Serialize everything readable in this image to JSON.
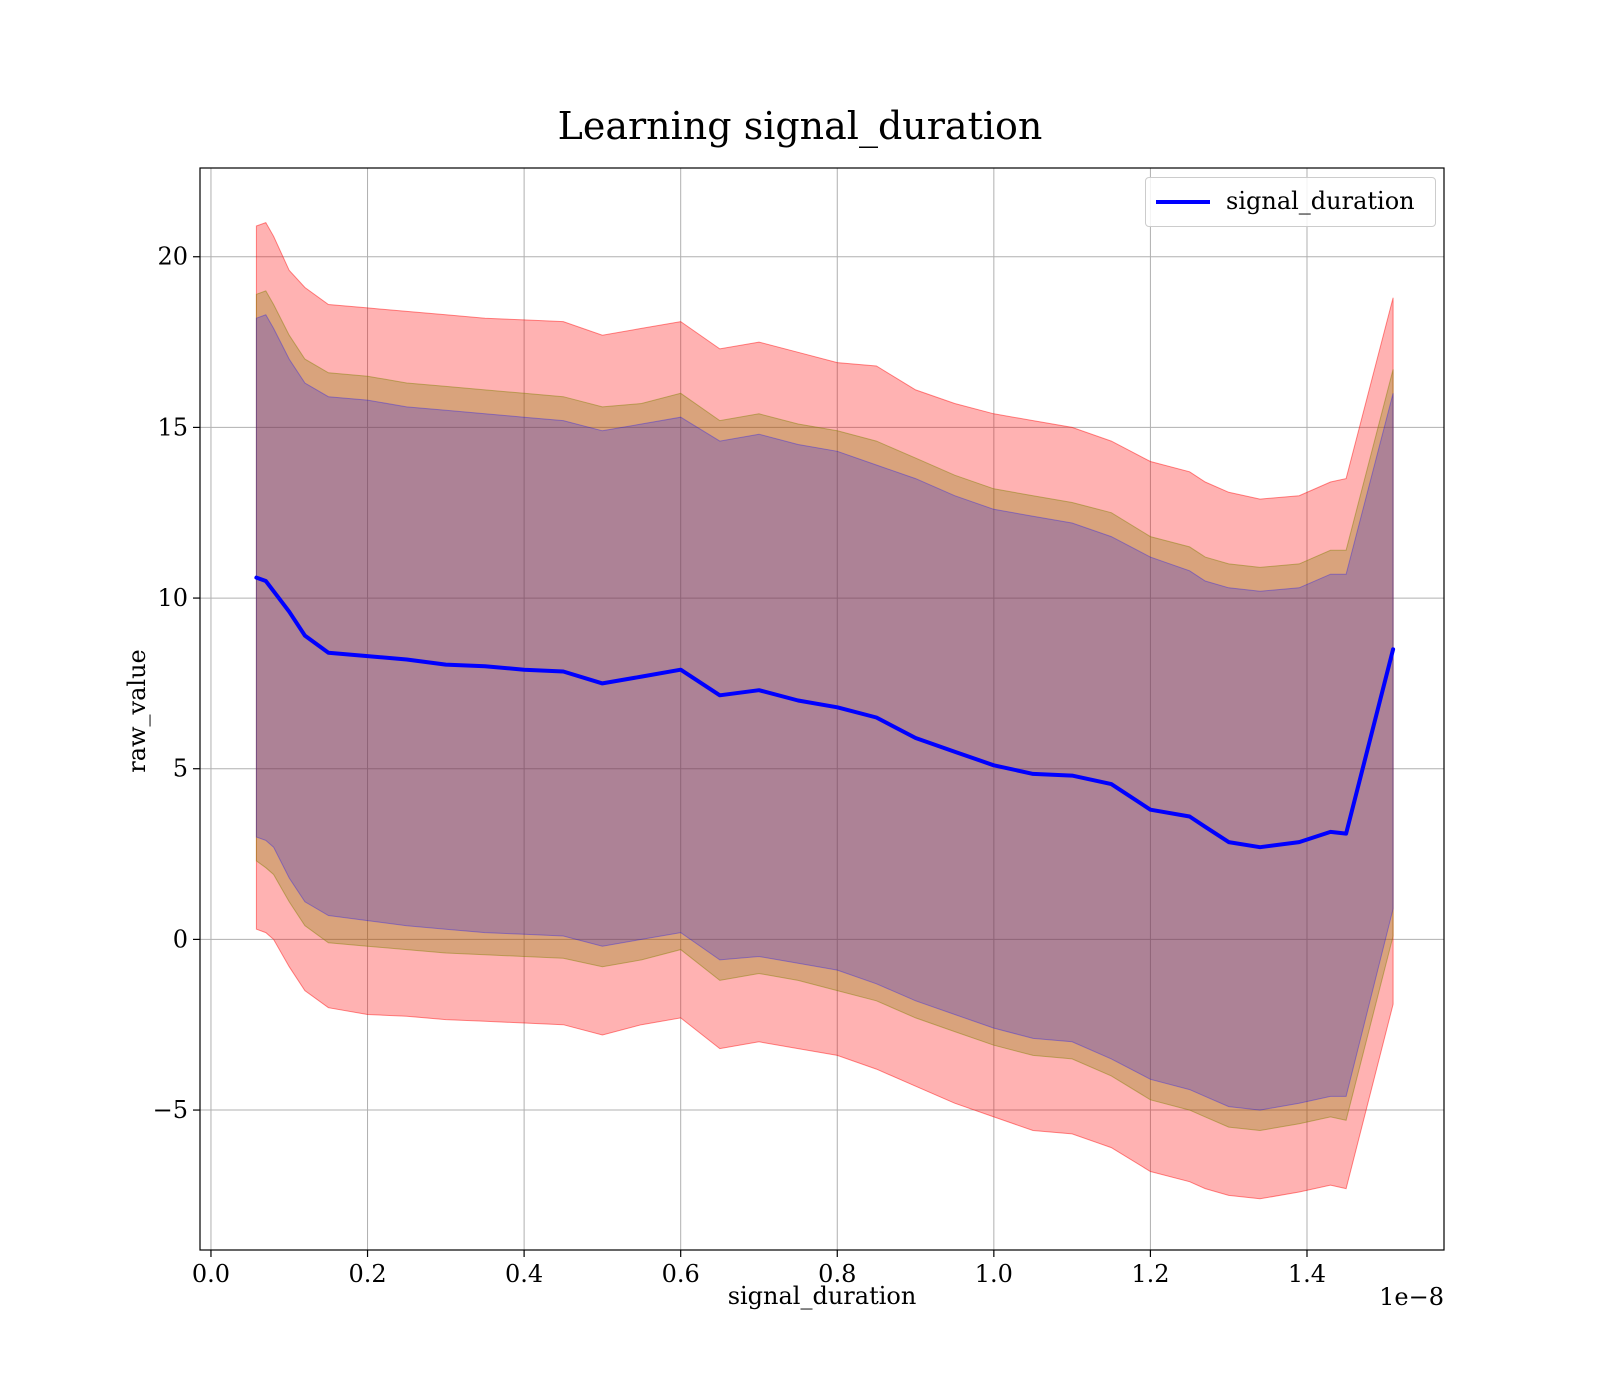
{
  "chart_data": {
    "type": "line",
    "title": "Learning signal_duration",
    "xlabel": "signal_duration",
    "ylabel": "raw_value",
    "x_offset_label": "1e−8",
    "xlim": [
      -0.014,
      1.575
    ],
    "ylim": [
      -9.1,
      22.6
    ],
    "xticks": [
      0.0,
      0.2,
      0.4,
      0.6,
      0.8,
      1.0,
      1.2,
      1.4
    ],
    "xtick_labels": [
      "0.0",
      "0.2",
      "0.4",
      "0.6",
      "0.8",
      "1.0",
      "1.2",
      "1.4"
    ],
    "yticks": [
      -5,
      0,
      5,
      10,
      15,
      20
    ],
    "ytick_labels": [
      "−5",
      "0",
      "5",
      "10",
      "15",
      "20"
    ],
    "grid": true,
    "legend_position": "top-right",
    "x": [
      0.058,
      0.07,
      0.08,
      0.1,
      0.12,
      0.15,
      0.2,
      0.25,
      0.3,
      0.35,
      0.4,
      0.45,
      0.5,
      0.55,
      0.6,
      0.65,
      0.7,
      0.75,
      0.8,
      0.85,
      0.9,
      0.95,
      1.0,
      1.05,
      1.1,
      1.15,
      1.2,
      1.25,
      1.27,
      1.3,
      1.34,
      1.39,
      1.43,
      1.45,
      1.51
    ],
    "series": [
      {
        "name": "signal_duration",
        "color": "#0000ff",
        "values": [
          10.6,
          10.5,
          10.2,
          9.6,
          8.9,
          8.4,
          8.3,
          8.2,
          8.05,
          8.0,
          7.9,
          7.85,
          7.5,
          7.7,
          7.9,
          7.15,
          7.3,
          7.0,
          6.8,
          6.5,
          5.9,
          5.5,
          5.1,
          4.85,
          4.8,
          4.55,
          3.8,
          3.6,
          3.3,
          2.85,
          2.7,
          2.85,
          3.15,
          3.1,
          8.5
        ]
      }
    ],
    "bands": [
      {
        "color": "#ff0000",
        "alpha": 0.3,
        "lower": [
          0.3,
          0.2,
          0.0,
          -0.8,
          -1.5,
          -2.0,
          -2.2,
          -2.25,
          -2.35,
          -2.4,
          -2.45,
          -2.5,
          -2.8,
          -2.5,
          -2.3,
          -3.2,
          -3.0,
          -3.2,
          -3.4,
          -3.8,
          -4.3,
          -4.8,
          -5.2,
          -5.6,
          -5.7,
          -6.1,
          -6.8,
          -7.1,
          -7.3,
          -7.5,
          -7.6,
          -7.4,
          -7.2,
          -7.3,
          -1.9
        ],
        "upper": [
          20.9,
          21.0,
          20.6,
          19.6,
          19.1,
          18.6,
          18.5,
          18.4,
          18.3,
          18.2,
          18.15,
          18.1,
          17.7,
          17.9,
          18.1,
          17.3,
          17.5,
          17.2,
          16.9,
          16.8,
          16.1,
          15.7,
          15.4,
          15.2,
          15.0,
          14.6,
          14.0,
          13.7,
          13.4,
          13.1,
          12.9,
          13.0,
          13.4,
          13.5,
          18.8
        ]
      },
      {
        "color": "#808000",
        "alpha": 0.3,
        "lower": [
          2.3,
          2.1,
          1.9,
          1.1,
          0.4,
          -0.1,
          -0.2,
          -0.3,
          -0.4,
          -0.45,
          -0.5,
          -0.55,
          -0.8,
          -0.6,
          -0.3,
          -1.2,
          -1.0,
          -1.2,
          -1.5,
          -1.8,
          -2.3,
          -2.7,
          -3.1,
          -3.4,
          -3.5,
          -4.0,
          -4.7,
          -5.0,
          -5.2,
          -5.5,
          -5.6,
          -5.4,
          -5.2,
          -5.3,
          0.1
        ],
        "upper": [
          18.9,
          19.0,
          18.6,
          17.7,
          17.0,
          16.6,
          16.5,
          16.3,
          16.2,
          16.1,
          16.0,
          15.9,
          15.6,
          15.7,
          16.0,
          15.2,
          15.4,
          15.1,
          14.9,
          14.6,
          14.1,
          13.6,
          13.2,
          13.0,
          12.8,
          12.5,
          11.8,
          11.5,
          11.2,
          11.0,
          10.9,
          11.0,
          11.4,
          11.4,
          16.7
        ]
      },
      {
        "color": "#0000ff",
        "alpha": 0.2,
        "lower": [
          3.0,
          2.9,
          2.7,
          1.8,
          1.1,
          0.7,
          0.55,
          0.4,
          0.3,
          0.2,
          0.15,
          0.1,
          -0.2,
          0.0,
          0.2,
          -0.6,
          -0.5,
          -0.7,
          -0.9,
          -1.3,
          -1.8,
          -2.2,
          -2.6,
          -2.9,
          -3.0,
          -3.5,
          -4.1,
          -4.4,
          -4.6,
          -4.9,
          -5.0,
          -4.8,
          -4.6,
          -4.6,
          0.9
        ],
        "upper": [
          18.2,
          18.3,
          17.9,
          17.0,
          16.3,
          15.9,
          15.8,
          15.6,
          15.5,
          15.4,
          15.3,
          15.2,
          14.9,
          15.1,
          15.3,
          14.6,
          14.8,
          14.5,
          14.3,
          13.9,
          13.5,
          13.0,
          12.6,
          12.4,
          12.2,
          11.8,
          11.2,
          10.8,
          10.5,
          10.3,
          10.2,
          10.3,
          10.7,
          10.7,
          16.0
        ]
      }
    ]
  }
}
